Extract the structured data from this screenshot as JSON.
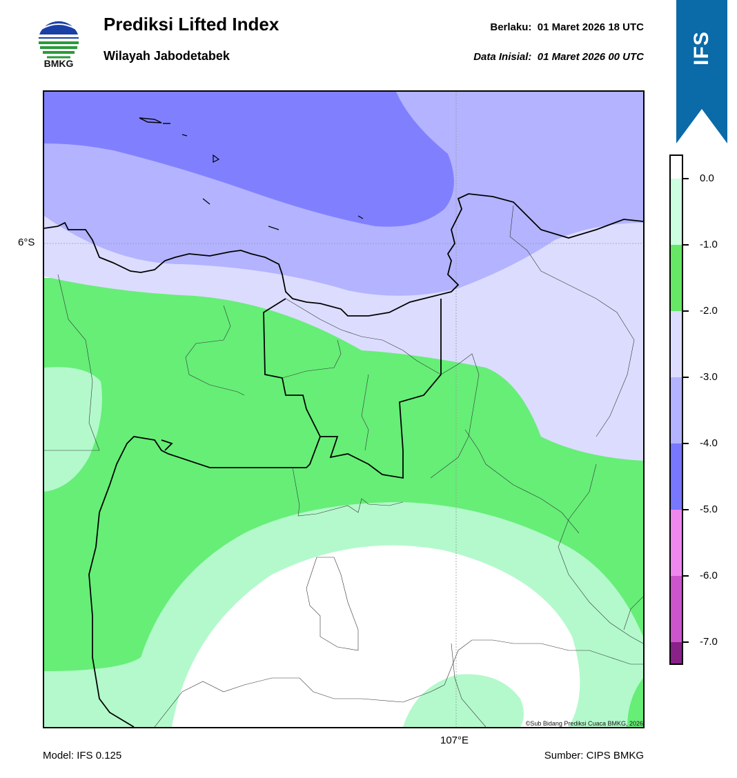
{
  "header": {
    "logo_text": "BMKG",
    "title": "Prediksi Lifted Index",
    "subtitle": "Wilayah Jabodetabek",
    "valid_label": "Berlaku:",
    "valid_value": "01 Maret 2026 18 UTC",
    "init_label": "Data Inisial:",
    "init_value": "01 Maret 2026 00 UTC",
    "ribbon_text": "IFS"
  },
  "map": {
    "lat_label": "6°S",
    "lon_label": "107°E",
    "copyright": "©Sub Bidang Prediksi Cuaca BMKG, 2026",
    "colors": {
      "level_m4_m3": "#8080ff",
      "level_m3_m2": "#b3b3ff",
      "level_m2_m1": "#dcdcff",
      "level_m1_0": "#66ee77",
      "level_0_1": "#b3f9cc",
      "level_above": "#ffffff"
    }
  },
  "colorbar": {
    "labels": [
      "0.0",
      "-1.0",
      "-2.0",
      "-3.0",
      "-4.0",
      "-5.0",
      "-6.0",
      "-7.0"
    ],
    "colors": [
      "#ffffff",
      "#ccffe0",
      "#66e766",
      "#ddddff",
      "#b3b3ff",
      "#7777ff",
      "#ee88ee",
      "#cc55cc",
      "#aa33aa",
      "#882288"
    ]
  },
  "footer": {
    "model": "Model: IFS 0.125",
    "source": "Sumber: CIPS BMKG"
  }
}
